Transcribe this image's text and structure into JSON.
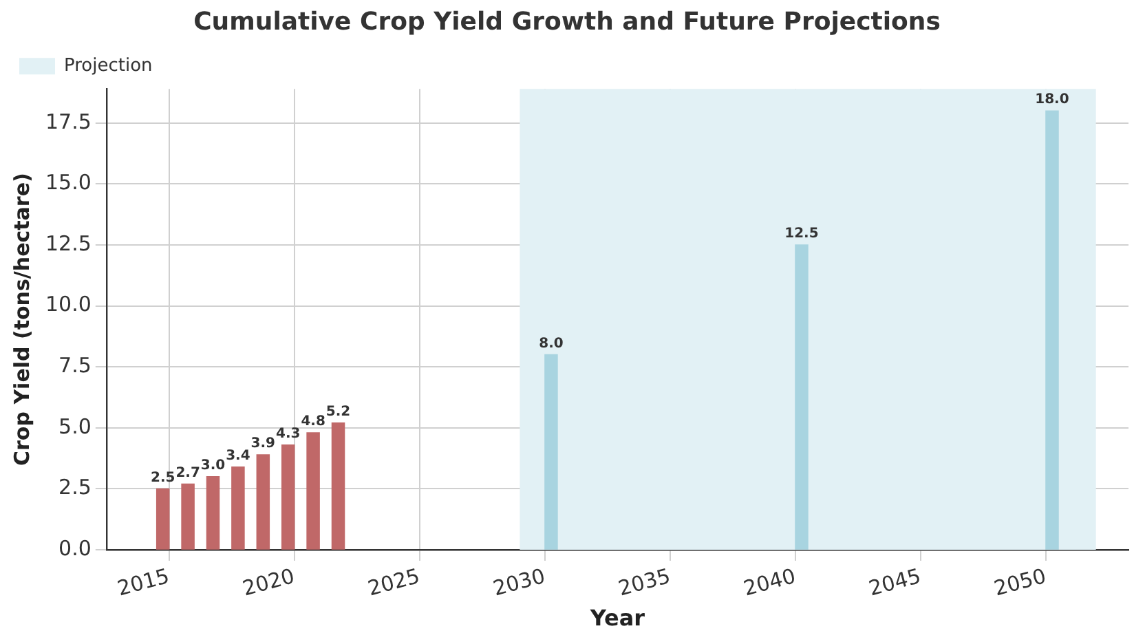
{
  "chart_data": {
    "type": "bar",
    "title": "Cumulative Crop Yield Growth and Future Projections",
    "xlabel": "Year",
    "ylabel": "Crop Yield (tons/hectare)",
    "series": [
      {
        "color": "#c06868",
        "x": [
          2015,
          2016,
          2017,
          2018,
          2019,
          2020,
          2021,
          2022
        ],
        "values": [
          2.5,
          2.7,
          3.0,
          3.4,
          3.9,
          4.3,
          4.8,
          5.2
        ],
        "value_labels": [
          "2.5",
          "2.7",
          "3.0",
          "3.4",
          "3.9",
          "4.3",
          "4.8",
          "5.2"
        ]
      },
      {
        "color": "#a8d4e0",
        "x": [
          2030,
          2040,
          2050
        ],
        "values": [
          8.0,
          12.5,
          18.0
        ],
        "value_labels": [
          "8.0",
          "12.5",
          "18.0"
        ]
      }
    ],
    "bands": [
      {
        "axis": "x",
        "from": 2029,
        "to": 2052,
        "label": "Projection",
        "color": "#e2f1f5"
      }
    ],
    "xlim": [
      2012.5,
      2053.3
    ],
    "xticks": [
      2015,
      2020,
      2025,
      2030,
      2035,
      2040,
      2045,
      2050
    ],
    "ylim": [
      0,
      18.9
    ],
    "yticks": [
      {
        "value": 0,
        "label": "0.0"
      },
      2.5,
      {
        "value": 5,
        "label": "5.0"
      },
      7.5,
      {
        "value": 10,
        "label": "10.0"
      },
      12.5,
      {
        "value": 15,
        "label": "15.0"
      },
      17.5
    ],
    "grid": true,
    "legend": "top left"
  }
}
